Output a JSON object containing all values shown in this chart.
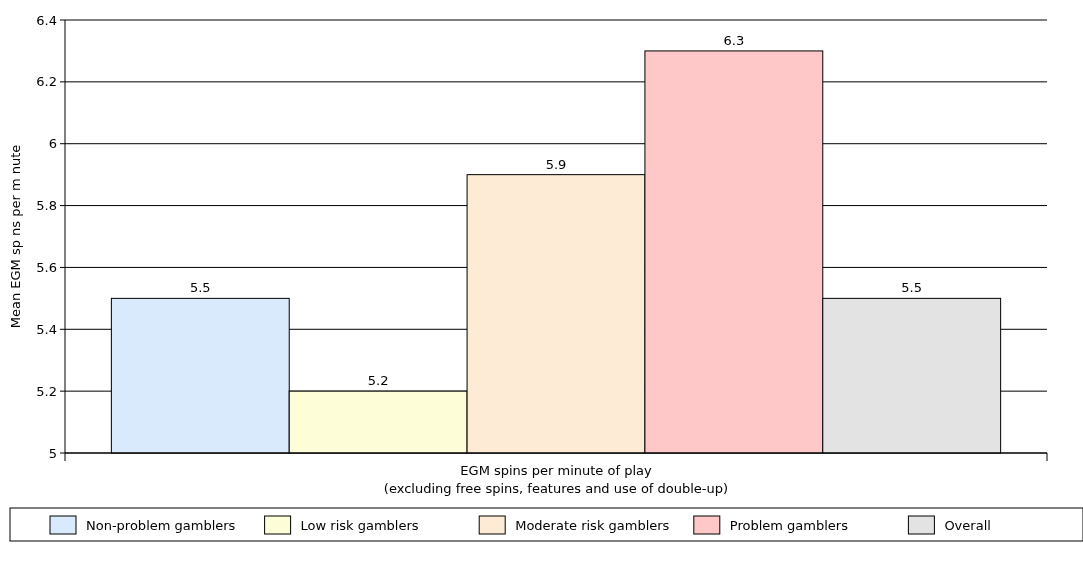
{
  "chart_data": {
    "type": "bar",
    "xlabel": "EGM spins per minute of play\n(excluding free spins, features and use of double-up)",
    "ylabel": "Mean EGM sp ns per m nute",
    "categories": [
      null
    ],
    "series": [
      {
        "name": "Non-problem gamblers",
        "color": "#d9eafc",
        "values": [
          5.5
        ]
      },
      {
        "name": "Low risk gamblers",
        "color": "#fdfdd8",
        "values": [
          5.2
        ]
      },
      {
        "name": "Moderate risk gamblers",
        "color": "#fdebd6",
        "values": [
          5.9
        ]
      },
      {
        "name": "Problem gamblers",
        "color": "#fec8c8",
        "values": [
          6.3
        ]
      },
      {
        "name": "Overall",
        "color": "#e3e3e3",
        "values": [
          5.5
        ]
      }
    ],
    "ylim": [
      5,
      6.4
    ],
    "yticks": [
      5,
      5.2,
      5.4,
      5.6,
      5.8,
      6,
      6.2,
      6.4
    ],
    "grid": "y",
    "data_labels": true,
    "legend": "bottom"
  }
}
